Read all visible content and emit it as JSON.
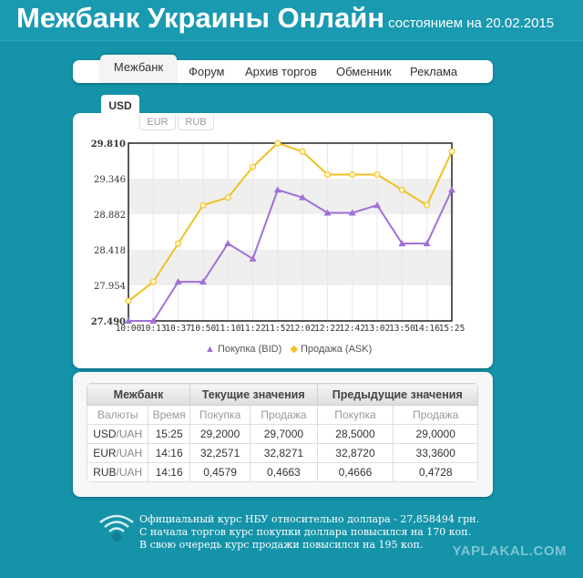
{
  "header": {
    "title": "Межбанк Украины Онлайн",
    "subtitle": "состоянием на 20.02.2015"
  },
  "nav": [
    "Межбанк",
    "Форум",
    "Архив торгов",
    "Обменник",
    "Реклама"
  ],
  "currency_tabs": [
    "USD",
    "EUR",
    "RUB"
  ],
  "chart_data": {
    "type": "line",
    "x": [
      "10:00",
      "10:13",
      "10:37",
      "10:50",
      "11:10",
      "11:22",
      "11:52",
      "12:02",
      "12:22",
      "12:42",
      "13:02",
      "13:50",
      "14:16",
      "15:25"
    ],
    "ylim": [
      27.49,
      29.81
    ],
    "yticks": [
      "27.490",
      "27.954",
      "28.418",
      "28.882",
      "29.346",
      "29.810"
    ],
    "series": [
      {
        "name": "Покупка (BID)",
        "color": "#a070d8",
        "marker": "triangle",
        "values": [
          27.49,
          27.49,
          28.0,
          28.0,
          28.5,
          28.3,
          29.2,
          29.1,
          28.9,
          28.9,
          29.0,
          28.5,
          28.5,
          29.2
        ]
      },
      {
        "name": "Продажа (ASK)",
        "color": "#f0c020",
        "marker": "diamond",
        "values": [
          27.75,
          28.0,
          28.5,
          29.0,
          29.1,
          29.5,
          29.81,
          29.7,
          29.4,
          29.4,
          29.4,
          29.2,
          29.0,
          29.7
        ]
      }
    ]
  },
  "table": {
    "groups": [
      "Межбанк",
      "Текущие значения",
      "Предыдущие значения"
    ],
    "columns": [
      "Валюты",
      "Время",
      "Покупка",
      "Продажа",
      "Покупка",
      "Продажа"
    ],
    "rows": [
      {
        "base": "USD",
        "quote": "/UAH",
        "cells": [
          "15:25",
          "29,2000",
          "29,7000",
          "28,5000",
          "29,0000"
        ]
      },
      {
        "base": "EUR",
        "quote": "/UAH",
        "cells": [
          "14:16",
          "32,2571",
          "32,8271",
          "32,8720",
          "33,3600"
        ]
      },
      {
        "base": "RUB",
        "quote": "/UAH",
        "cells": [
          "14:16",
          "0,4579",
          "0,4663",
          "0,4666",
          "0,4728"
        ]
      }
    ]
  },
  "footer": [
    "Официальный курс НБУ относительно доллара - 27,858494 грн.",
    "С начала торгов курс покупки доллара повысился на 170 коп.",
    "В свою очередь курс продажи повысился на 195 коп."
  ],
  "watermark": "YAPLAKAL.COM"
}
